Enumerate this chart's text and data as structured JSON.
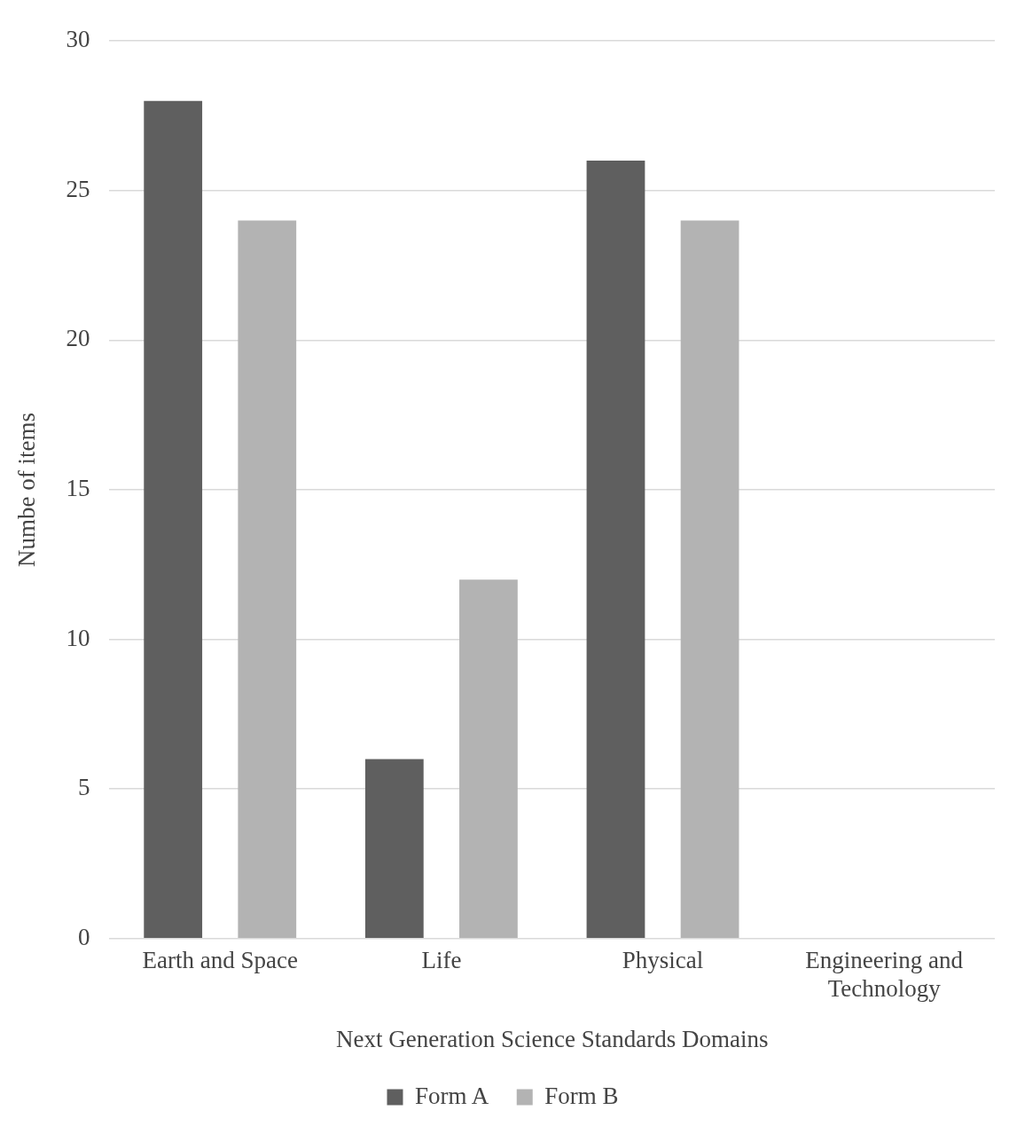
{
  "chart_data": {
    "type": "bar",
    "xlabel": "Next Generation Science Standards Domains",
    "ylabel": "Numbe of items",
    "categories": [
      "Earth and Space",
      "Life",
      "Physical",
      "Engineering and Technology"
    ],
    "series": [
      {
        "name": "Form A",
        "color": "#5f5f5f",
        "values": [
          28,
          6,
          26,
          0
        ]
      },
      {
        "name": "Form B",
        "color": "#b3b3b3",
        "values": [
          24,
          12,
          24,
          0
        ]
      }
    ],
    "ylim": [
      0,
      30
    ],
    "yticks": [
      0,
      5,
      10,
      15,
      20,
      25,
      30
    ],
    "grid": "y",
    "legend": "bottom"
  }
}
